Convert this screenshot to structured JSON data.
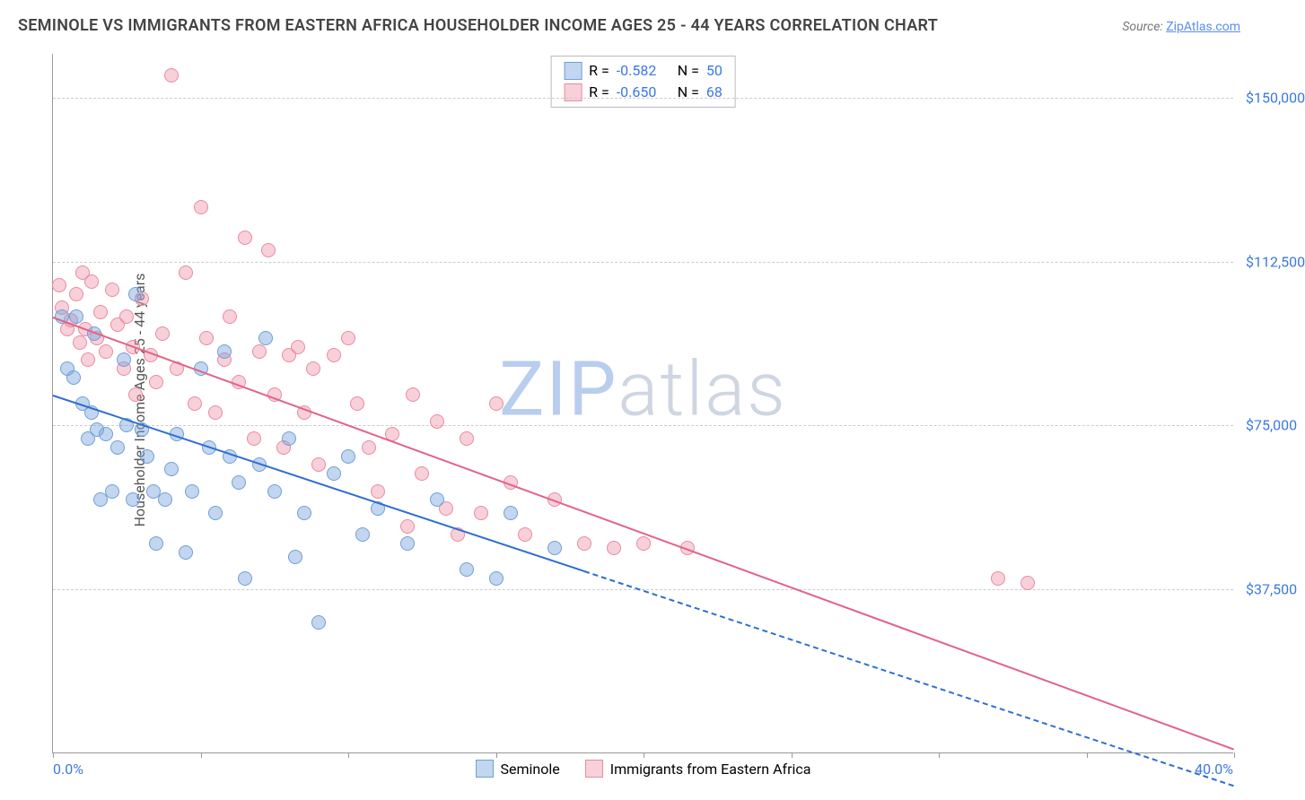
{
  "title": "SEMINOLE VS IMMIGRANTS FROM EASTERN AFRICA HOUSEHOLDER INCOME AGES 25 - 44 YEARS CORRELATION CHART",
  "title_color": "#444444",
  "source_prefix": "Source: ",
  "source_name": "ZipAtlas.com",
  "source_color": "#777777",
  "link_color": "#5b8def",
  "y_axis_label": "Householder Income Ages 25 - 44 years",
  "y_axis_label_color": "#555555",
  "background_color": "#ffffff",
  "grid_color": "#cccccc",
  "axis_color": "#999999",
  "tick_label_color": "#3b78e7",
  "watermark_zip": "ZIP",
  "watermark_atlas": "atlas",
  "watermark_color_zip": "#b9cdef",
  "watermark_color_atlas": "#cfd6e2",
  "xlim": [
    0,
    40
  ],
  "ylim": [
    0,
    160000
  ],
  "y_ticks": [
    37500,
    75000,
    112500,
    150000
  ],
  "y_tick_labels": [
    "$37,500",
    "$75,000",
    "$112,500",
    "$150,000"
  ],
  "x_ticks": [
    0,
    5,
    10,
    15,
    20,
    25,
    30,
    35,
    40
  ],
  "x_min_label": "0.0%",
  "x_max_label": "40.0%",
  "series": {
    "blue": {
      "label": "Seminole",
      "fill": "rgba(121,163,220,0.45)",
      "stroke": "#6f9fd8",
      "line_color": "#2f6fd0",
      "R": "-0.582",
      "N": "50",
      "reg_start": [
        0,
        82000
      ],
      "reg_end_solid": [
        18,
        41800
      ],
      "reg_end_dash": [
        40,
        -7300
      ],
      "points": [
        [
          0.3,
          100000
        ],
        [
          0.5,
          88000
        ],
        [
          0.7,
          86000
        ],
        [
          0.8,
          100000
        ],
        [
          1.0,
          80000
        ],
        [
          1.2,
          72000
        ],
        [
          1.3,
          78000
        ],
        [
          1.4,
          96000
        ],
        [
          1.5,
          74000
        ],
        [
          1.6,
          58000
        ],
        [
          1.8,
          73000
        ],
        [
          2.0,
          60000
        ],
        [
          2.2,
          70000
        ],
        [
          2.4,
          90000
        ],
        [
          2.5,
          75000
        ],
        [
          2.7,
          58000
        ],
        [
          2.8,
          105000
        ],
        [
          3.0,
          74000
        ],
        [
          3.2,
          68000
        ],
        [
          3.4,
          60000
        ],
        [
          3.5,
          48000
        ],
        [
          3.8,
          58000
        ],
        [
          4.0,
          65000
        ],
        [
          4.2,
          73000
        ],
        [
          4.5,
          46000
        ],
        [
          4.7,
          60000
        ],
        [
          5.0,
          88000
        ],
        [
          5.3,
          70000
        ],
        [
          5.5,
          55000
        ],
        [
          5.8,
          92000
        ],
        [
          6.0,
          68000
        ],
        [
          6.3,
          62000
        ],
        [
          6.5,
          40000
        ],
        [
          7.0,
          66000
        ],
        [
          7.2,
          95000
        ],
        [
          7.5,
          60000
        ],
        [
          8.0,
          72000
        ],
        [
          8.2,
          45000
        ],
        [
          8.5,
          55000
        ],
        [
          9.0,
          30000
        ],
        [
          9.5,
          64000
        ],
        [
          10.0,
          68000
        ],
        [
          10.5,
          50000
        ],
        [
          11.0,
          56000
        ],
        [
          12.0,
          48000
        ],
        [
          13.0,
          58000
        ],
        [
          14.0,
          42000
        ],
        [
          15.0,
          40000
        ],
        [
          15.5,
          55000
        ],
        [
          17.0,
          47000
        ]
      ]
    },
    "pink": {
      "label": "Immigrants from Eastern Africa",
      "fill": "rgba(240,150,170,0.45)",
      "stroke": "#e88ba2",
      "line_color": "#e26389",
      "R": "-0.650",
      "N": "68",
      "reg_start": [
        0,
        100000
      ],
      "reg_end_solid": [
        40,
        1200
      ],
      "reg_end_dash": [
        40,
        1200
      ],
      "points": [
        [
          0.2,
          107000
        ],
        [
          0.3,
          102000
        ],
        [
          0.5,
          97000
        ],
        [
          0.6,
          99000
        ],
        [
          0.8,
          105000
        ],
        [
          0.9,
          94000
        ],
        [
          1.0,
          110000
        ],
        [
          1.1,
          97000
        ],
        [
          1.2,
          90000
        ],
        [
          1.3,
          108000
        ],
        [
          1.5,
          95000
        ],
        [
          1.6,
          101000
        ],
        [
          1.8,
          92000
        ],
        [
          2.0,
          106000
        ],
        [
          2.2,
          98000
        ],
        [
          2.4,
          88000
        ],
        [
          2.5,
          100000
        ],
        [
          2.7,
          93000
        ],
        [
          2.8,
          82000
        ],
        [
          3.0,
          104000
        ],
        [
          3.3,
          91000
        ],
        [
          3.5,
          85000
        ],
        [
          3.7,
          96000
        ],
        [
          4.0,
          155000
        ],
        [
          4.2,
          88000
        ],
        [
          4.5,
          110000
        ],
        [
          4.8,
          80000
        ],
        [
          5.0,
          125000
        ],
        [
          5.2,
          95000
        ],
        [
          5.5,
          78000
        ],
        [
          5.8,
          90000
        ],
        [
          6.0,
          100000
        ],
        [
          6.3,
          85000
        ],
        [
          6.5,
          118000
        ],
        [
          6.8,
          72000
        ],
        [
          7.0,
          92000
        ],
        [
          7.3,
          115000
        ],
        [
          7.5,
          82000
        ],
        [
          7.8,
          70000
        ],
        [
          8.0,
          91000
        ],
        [
          8.3,
          93000
        ],
        [
          8.5,
          78000
        ],
        [
          8.8,
          88000
        ],
        [
          9.0,
          66000
        ],
        [
          9.5,
          91000
        ],
        [
          10.0,
          95000
        ],
        [
          10.3,
          80000
        ],
        [
          10.7,
          70000
        ],
        [
          11.0,
          60000
        ],
        [
          11.5,
          73000
        ],
        [
          12.0,
          52000
        ],
        [
          12.2,
          82000
        ],
        [
          12.5,
          64000
        ],
        [
          13.0,
          76000
        ],
        [
          13.3,
          56000
        ],
        [
          13.7,
          50000
        ],
        [
          14.0,
          72000
        ],
        [
          14.5,
          55000
        ],
        [
          15.0,
          80000
        ],
        [
          15.5,
          62000
        ],
        [
          16.0,
          50000
        ],
        [
          17.0,
          58000
        ],
        [
          18.0,
          48000
        ],
        [
          19.0,
          47000
        ],
        [
          20.0,
          48000
        ],
        [
          21.5,
          47000
        ],
        [
          32.0,
          40000
        ],
        [
          33.0,
          39000
        ]
      ]
    }
  },
  "legend_top_text": {
    "R_label": "R =",
    "N_label": "N ="
  },
  "fontsize_title": 18,
  "fontsize_label": 16,
  "fontsize_watermark": 84
}
